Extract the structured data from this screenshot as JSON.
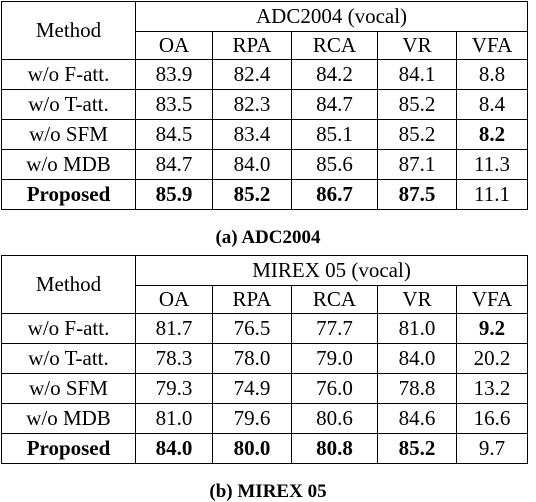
{
  "tables": [
    {
      "id": "a",
      "method_header": "Method",
      "dataset_header": "ADC2004 (vocal)",
      "columns": [
        "OA",
        "RPA",
        "RCA",
        "VR",
        "VFA"
      ],
      "rows": [
        {
          "method": "w/o F-att.",
          "values": [
            "83.9",
            "82.4",
            "84.2",
            "84.1",
            "8.8"
          ],
          "bold": [
            false,
            false,
            false,
            false,
            false
          ],
          "method_bold": false
        },
        {
          "method": "w/o T-att.",
          "values": [
            "83.5",
            "82.3",
            "84.7",
            "85.2",
            "8.4"
          ],
          "bold": [
            false,
            false,
            false,
            false,
            false
          ],
          "method_bold": false
        },
        {
          "method": "w/o SFM",
          "values": [
            "84.5",
            "83.4",
            "85.1",
            "85.2",
            "8.2"
          ],
          "bold": [
            false,
            false,
            false,
            false,
            true
          ],
          "method_bold": false
        },
        {
          "method": "w/o MDB",
          "values": [
            "84.7",
            "84.0",
            "85.6",
            "87.1",
            "11.3"
          ],
          "bold": [
            false,
            false,
            false,
            false,
            false
          ],
          "method_bold": false
        },
        {
          "method": "Proposed",
          "values": [
            "85.9",
            "85.2",
            "86.7",
            "87.5",
            "11.1"
          ],
          "bold": [
            true,
            true,
            true,
            true,
            false
          ],
          "method_bold": true
        }
      ],
      "caption": "(a) ADC2004"
    },
    {
      "id": "b",
      "method_header": "Method",
      "dataset_header": "MIREX 05 (vocal)",
      "columns": [
        "OA",
        "RPA",
        "RCA",
        "VR",
        "VFA"
      ],
      "rows": [
        {
          "method": "w/o F-att.",
          "values": [
            "81.7",
            "76.5",
            "77.7",
            "81.0",
            "9.2"
          ],
          "bold": [
            false,
            false,
            false,
            false,
            true
          ],
          "method_bold": false
        },
        {
          "method": "w/o T-att.",
          "values": [
            "78.3",
            "78.0",
            "79.0",
            "84.0",
            "20.2"
          ],
          "bold": [
            false,
            false,
            false,
            false,
            false
          ],
          "method_bold": false
        },
        {
          "method": "w/o SFM",
          "values": [
            "79.3",
            "74.9",
            "76.0",
            "78.8",
            "13.2"
          ],
          "bold": [
            false,
            false,
            false,
            false,
            false
          ],
          "method_bold": false
        },
        {
          "method": "w/o MDB",
          "values": [
            "81.0",
            "79.6",
            "80.6",
            "84.6",
            "16.6"
          ],
          "bold": [
            false,
            false,
            false,
            false,
            false
          ],
          "method_bold": false
        },
        {
          "method": "Proposed",
          "values": [
            "84.0",
            "80.0",
            "80.8",
            "85.2",
            "9.7"
          ],
          "bold": [
            true,
            true,
            true,
            true,
            false
          ],
          "method_bold": true
        }
      ],
      "caption": "(b) MIREX 05"
    }
  ]
}
